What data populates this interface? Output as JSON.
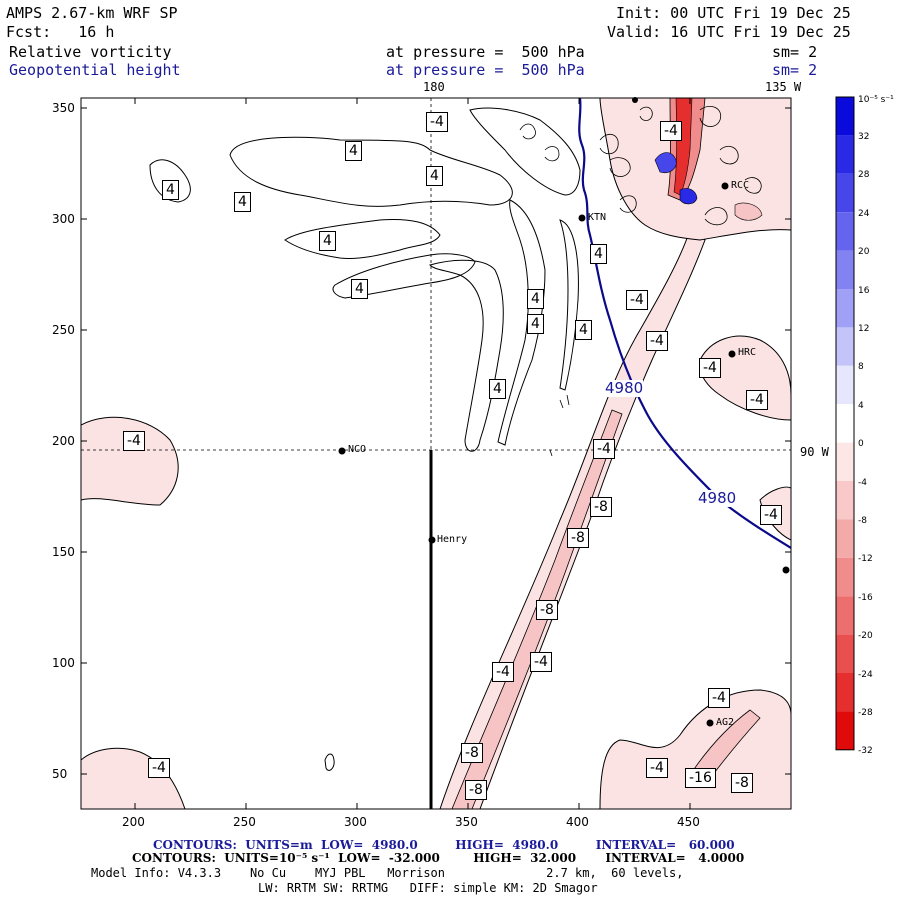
{
  "header": {
    "model_title": "AMPS 2.67-km WRF SP",
    "forecast": "Fcst:   16 h",
    "init": "Init: 00 UTC Fri 19 Dec 25",
    "valid": "Valid: 16 UTC Fri 19 Dec 25",
    "field1_name": "Relative vorticity",
    "field1_level": "at pressure =  500 hPa",
    "field1_smooth": "sm= 2",
    "field2_name": "Geopotential height",
    "field2_level": "at pressure =  500 hPa",
    "field2_smooth": "sm= 2",
    "field2_color": "#1a1a9a"
  },
  "map": {
    "meridian_180": "180",
    "meridian_135w": "135 W",
    "parallel_90w": "90 W",
    "x_ticks": [
      "200",
      "250",
      "300",
      "350",
      "400",
      "450"
    ],
    "y_ticks": [
      "350",
      "300",
      "250",
      "200",
      "150",
      "100",
      "50"
    ],
    "stations": [
      "NCO",
      "Henry",
      "HRC",
      "AG2",
      "KTN",
      "RCC"
    ],
    "height_contour_labels": [
      "4980",
      "4980"
    ],
    "vort_labels": [
      "4",
      "4",
      "4",
      "4",
      "4",
      "4",
      "4",
      "4",
      "4",
      "4",
      "4",
      "-4",
      "-4",
      "-4",
      "-4",
      "-4",
      "-4",
      "-4",
      "-4",
      "-4",
      "-4",
      "-4",
      "-4",
      "-4",
      "-8",
      "-8",
      "-8",
      "-8",
      "-8",
      "-8",
      "-16",
      "-4"
    ]
  },
  "colorbar": {
    "units": "10⁻⁵ s⁻¹",
    "labels": [
      "32",
      "28",
      "24",
      "20",
      "16",
      "12",
      "8",
      "4",
      "0",
      "-4",
      "-8",
      "-12",
      "-16",
      "-20",
      "-24",
      "-28",
      "-32"
    ],
    "colors": [
      "#0a0adc",
      "#2a2ae6",
      "#4646ea",
      "#6464ee",
      "#8282f2",
      "#a0a0f6",
      "#c4c4fa",
      "#e6e6fd",
      "#ffffff",
      "#fde6e6",
      "#f9c8c8",
      "#f5aaaa",
      "#f18c8c",
      "#ed6e6e",
      "#e94f4f",
      "#e52e2e",
      "#e10a0a"
    ]
  },
  "footer": {
    "contours1": "CONTOURS:  UNITS=m  LOW=  4980.0         HIGH=  4980.0         INTERVAL=   60.000",
    "contours2": "CONTOURS:  UNITS=10⁻⁵ s⁻¹  LOW=  -32.000        HIGH=  32.000       INTERVAL=   4.0000",
    "model_info": "Model Info: V4.3.3    No Cu    MYJ PBL   Morrison              2.7 km,  60 levels,",
    "model_info2": "LW: RRTM SW: RRTMG   DIFF: simple KM: 2D Smagor"
  }
}
